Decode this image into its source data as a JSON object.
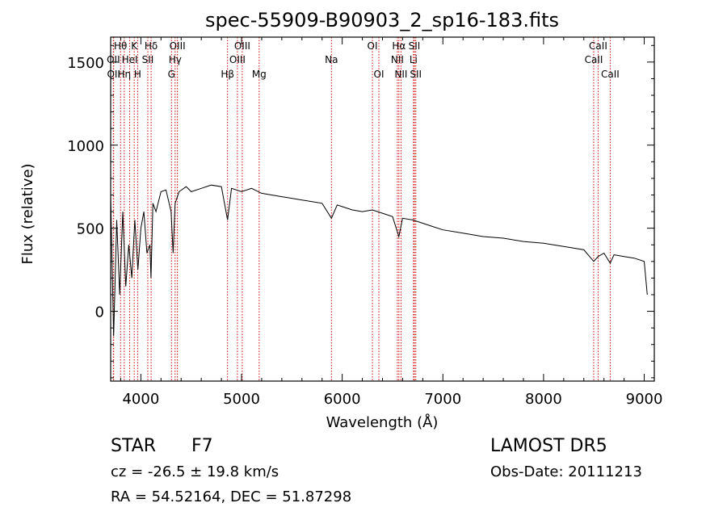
{
  "chart_data": {
    "type": "line",
    "title": "spec-55909-B90903_2_sp16-183.fits",
    "xlabel": "Wavelength (Å)",
    "ylabel": "Flux (relative)",
    "xlim": [
      3700,
      9100
    ],
    "ylim": [
      -420,
      1650
    ],
    "x_ticks": [
      4000,
      5000,
      6000,
      7000,
      8000,
      9000
    ],
    "x_tick_labels": [
      "4000",
      "5000",
      "6000",
      "7000",
      "8000",
      "9000"
    ],
    "y_ticks": [
      0,
      500,
      1000,
      1500
    ],
    "y_tick_labels": [
      "0",
      "500",
      "1000",
      "1500"
    ],
    "grid": false,
    "series": [
      {
        "x": [
          3700,
          3730,
          3760,
          3790,
          3820,
          3850,
          3880,
          3910,
          3940,
          3970,
          4000,
          4030,
          4060,
          4090,
          4100,
          4120,
          4150,
          4200,
          4250,
          4300,
          4320,
          4340,
          4380,
          4450,
          4500,
          4600,
          4700,
          4800,
          4861,
          4900,
          5000,
          5100,
          5200,
          5300,
          5400,
          5500,
          5600,
          5700,
          5800,
          5893,
          5950,
          6000,
          6100,
          6200,
          6300,
          6400,
          6500,
          6563,
          6600,
          6700,
          6800,
          6900,
          7000,
          7200,
          7400,
          7600,
          7800,
          8000,
          8200,
          8400,
          8498,
          8542,
          8600,
          8662,
          8700,
          8800,
          8900,
          9000,
          9030
        ],
        "y": [
          700,
          -150,
          550,
          100,
          600,
          150,
          400,
          200,
          550,
          250,
          500,
          600,
          350,
          400,
          200,
          650,
          600,
          720,
          730,
          600,
          350,
          650,
          720,
          750,
          720,
          740,
          760,
          750,
          550,
          740,
          720,
          740,
          710,
          700,
          690,
          680,
          670,
          660,
          650,
          560,
          640,
          630,
          610,
          600,
          610,
          590,
          570,
          450,
          560,
          550,
          530,
          510,
          490,
          470,
          450,
          440,
          420,
          410,
          390,
          370,
          300,
          330,
          350,
          290,
          340,
          330,
          320,
          300,
          100
        ]
      }
    ],
    "line_labels": [
      {
        "text": "Hθ",
        "x": 3798,
        "row": 1
      },
      {
        "text": "K",
        "x": 3934,
        "row": 1
      },
      {
        "text": "Hδ",
        "x": 4102,
        "row": 1
      },
      {
        "text": "OIII",
        "x": 4363,
        "row": 1
      },
      {
        "text": "OIII",
        "x": 5007,
        "row": 1
      },
      {
        "text": "OI",
        "x": 6300,
        "row": 1
      },
      {
        "text": "Hα",
        "x": 6563,
        "row": 1
      },
      {
        "text": "SII",
        "x": 6717,
        "row": 1
      },
      {
        "text": "CaII",
        "x": 8542,
        "row": 1
      },
      {
        "text": "OII",
        "x": 3727,
        "row": 2
      },
      {
        "text": "HeI",
        "x": 3889,
        "row": 2
      },
      {
        "text": "SII",
        "x": 4069,
        "row": 2
      },
      {
        "text": "Hγ",
        "x": 4340,
        "row": 2
      },
      {
        "text": "OIII",
        "x": 4959,
        "row": 2
      },
      {
        "text": "Na",
        "x": 5893,
        "row": 2
      },
      {
        "text": "NII",
        "x": 6548,
        "row": 2
      },
      {
        "text": "Li",
        "x": 6708,
        "row": 2
      },
      {
        "text": "CaII",
        "x": 8498,
        "row": 2
      },
      {
        "text": "OII",
        "x": 3730,
        "row": 3
      },
      {
        "text": "Hη",
        "x": 3835,
        "row": 3
      },
      {
        "text": "H",
        "x": 3968,
        "row": 3
      },
      {
        "text": "G",
        "x": 4304,
        "row": 3
      },
      {
        "text": "Hβ",
        "x": 4861,
        "row": 3
      },
      {
        "text": "Mg",
        "x": 5175,
        "row": 3
      },
      {
        "text": "OI",
        "x": 6364,
        "row": 3
      },
      {
        "text": "NII",
        "x": 6584,
        "row": 3
      },
      {
        "text": "SII",
        "x": 6731,
        "row": 3
      },
      {
        "text": "CaII",
        "x": 8662,
        "row": 3
      }
    ],
    "line_positions": [
      3727,
      3730,
      3798,
      3835,
      3889,
      3934,
      3968,
      4069,
      4102,
      4304,
      4340,
      4363,
      4861,
      4959,
      5007,
      5175,
      5893,
      6300,
      6364,
      6548,
      6563,
      6584,
      6708,
      6717,
      6731,
      8498,
      8542,
      8662
    ],
    "line_color": "#cc0000",
    "spectrum_color": "#000000"
  },
  "info": {
    "class": "STAR",
    "subclass": "F7",
    "survey": "LAMOST DR5",
    "redshift": "cz = -26.5 ± 19.8 km/s",
    "obsdate": "Obs-Date: 20111213",
    "coords": "RA =  54.52164, DEC =  51.87298"
  }
}
